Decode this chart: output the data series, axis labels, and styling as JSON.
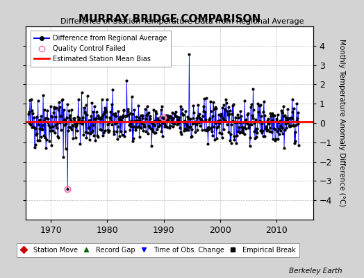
{
  "title": "MURRAY BRIDGE COMPARISON",
  "subtitle": "Difference of Station Temperature Data from Regional Average",
  "ylabel": "Monthly Temperature Anomaly Difference (°C)",
  "ylim": [
    -5,
    5
  ],
  "yticks": [
    -4,
    -3,
    -2,
    -1,
    0,
    1,
    2,
    3,
    4
  ],
  "xlim": [
    1965.5,
    2016.5
  ],
  "xticks": [
    1970,
    1980,
    1990,
    2000,
    2010
  ],
  "bias_line": 0.08,
  "background_color": "#d3d3d3",
  "plot_bg_color": "#ffffff",
  "line_color": "#0000ff",
  "bias_color": "#ff0000",
  "marker_color": "#000000",
  "qc_color": "#ff69b4",
  "berkeley_earth_text": "Berkeley Earth",
  "legend1_labels": [
    "Difference from Regional Average",
    "Quality Control Failed",
    "Estimated Station Mean Bias"
  ],
  "legend2_labels": [
    "Station Move",
    "Record Gap",
    "Time of Obs. Change",
    "Empirical Break"
  ],
  "seed": 42,
  "n_points": 576,
  "start_year": 1966.042,
  "end_year": 2013.958,
  "spike_year": 1994.5,
  "spike_value": 3.55,
  "dip_year": 1973.0,
  "dip_value": -3.1,
  "qc_year1": 1973.0,
  "qc_val1": -1.55,
  "qc_year2": 1990.0,
  "qc_val2": 0.5
}
